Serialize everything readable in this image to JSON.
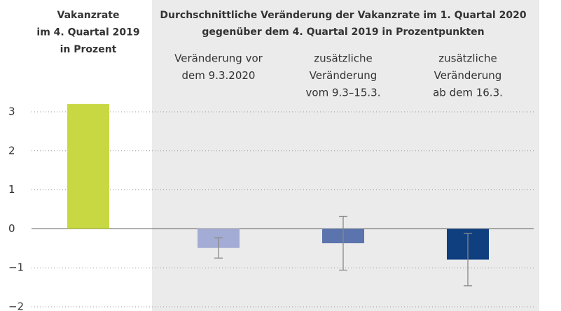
{
  "chart_data": {
    "type": "bar",
    "group_title": [
      "Durchschnittliche Veränderung der Vakanzrate im 1. Quartal 2020",
      "gegenüber dem 4. Quartal 2019 in Prozentpunkten"
    ],
    "categories": [
      [
        "Vakanzrate",
        "im 4. Quartal 2019",
        "in Prozent"
      ],
      [
        "Veränderung vor",
        "dem 9.3.2020"
      ],
      [
        "zusätzliche",
        "Veränderung",
        "vom 9.3–15.3."
      ],
      [
        "zusätzliche",
        "Veränderung",
        "ab dem 16.3."
      ]
    ],
    "values": [
      3.2,
      -0.49,
      -0.37,
      -0.79
    ],
    "errors": [
      null,
      0.26,
      0.69,
      0.67
    ],
    "colors": [
      "#c8d843",
      "#a3acd4",
      "#5b74ad",
      "#0f3f7f"
    ],
    "ylim": [
      -2,
      3
    ],
    "yticks": [
      {
        "value": -2,
        "label": "−2"
      },
      {
        "value": -1,
        "label": "−1"
      },
      0,
      1,
      2,
      3
    ],
    "grid": true
  }
}
